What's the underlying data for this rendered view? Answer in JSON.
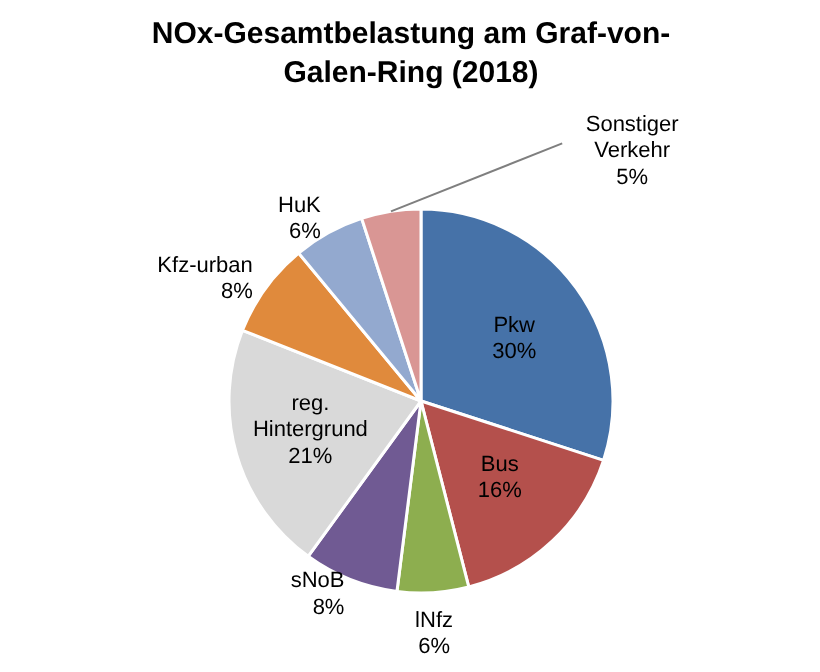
{
  "chart_data": {
    "type": "pie",
    "title": "NOx-Gesamtbelastung am Graf-von-Galen-Ring (2018)",
    "categories": [
      "Pkw",
      "Bus",
      "lNfz",
      "sNoB",
      "reg. Hintergrund",
      "Kfz-urban",
      "HuK",
      "Sonstiger Verkehr"
    ],
    "values": [
      30,
      16,
      6,
      8,
      21,
      8,
      6,
      5
    ],
    "colors": [
      "#4672a8",
      "#b4504c",
      "#8dae4f",
      "#705a93",
      "#d9d9d9",
      "#e08a3c",
      "#93a9cf",
      "#d99694"
    ],
    "value_labels": [
      "30%",
      "16%",
      "6%",
      "8%",
      "21%",
      "8%",
      "6%",
      "5%"
    ]
  }
}
